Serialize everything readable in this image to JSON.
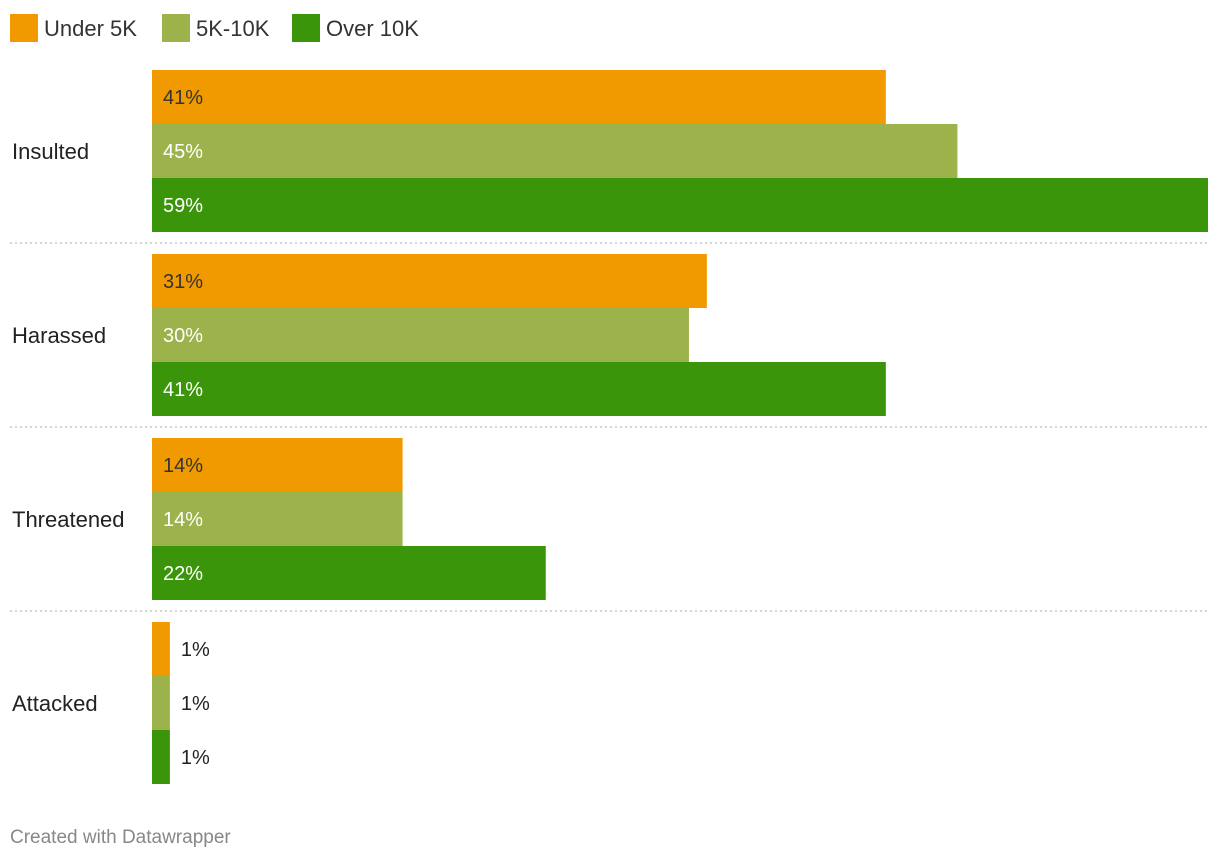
{
  "chart_data": {
    "type": "bar",
    "orientation": "horizontal",
    "categories": [
      "Insulted",
      "Harassed",
      "Threatened",
      "Attacked"
    ],
    "series": [
      {
        "name": "Under 5K",
        "color": "#f09a00",
        "values": [
          41,
          31,
          14,
          1
        ]
      },
      {
        "name": "5K-10K",
        "color": "#9cb34c",
        "values": [
          45,
          30,
          14,
          1
        ]
      },
      {
        "name": "Over 10K",
        "color": "#3b950b",
        "values": [
          59,
          41,
          22,
          1
        ]
      }
    ],
    "value_suffix": "%",
    "xlim": [
      0,
      59
    ],
    "grid": false,
    "legend_position": "top-left",
    "title": "",
    "xlabel": "",
    "ylabel": ""
  },
  "footer": {
    "credit": "Created with Datawrapper"
  }
}
